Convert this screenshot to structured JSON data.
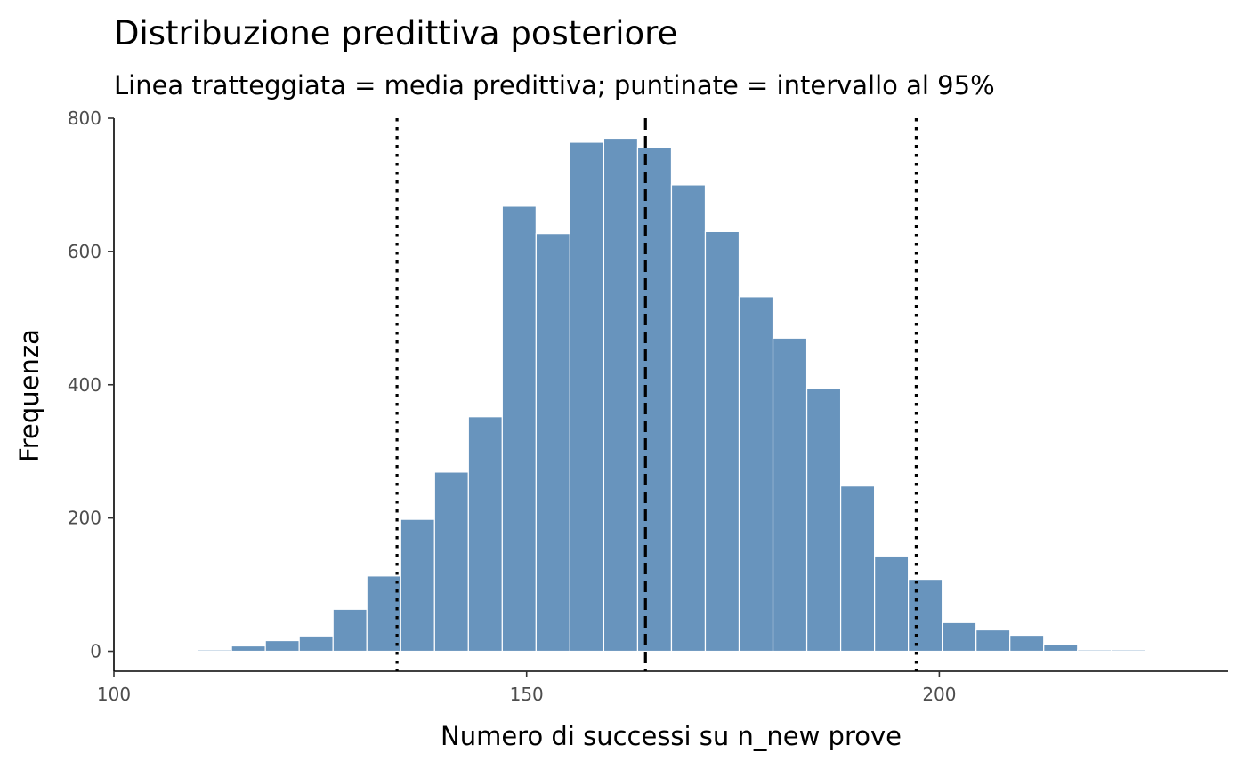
{
  "chart_data": {
    "type": "bar",
    "title": "Distribuzione predittiva posteriore",
    "subtitle": "Linea tratteggiata = media predittiva; puntinate = intervallo al 95%",
    "xlabel": "Numero di successi su n_new prove",
    "ylabel": "Frequenza",
    "xlim": [
      100,
      235
    ],
    "ylim": [
      -30,
      800
    ],
    "x_ticks": [
      100,
      150,
      200
    ],
    "y_ticks": [
      0,
      200,
      400,
      600,
      800
    ],
    "bin_width": 4.1,
    "bins": [
      {
        "x": 108.1,
        "count": 1
      },
      {
        "x": 112.2,
        "count": 2
      },
      {
        "x": 116.3,
        "count": 8
      },
      {
        "x": 120.4,
        "count": 16
      },
      {
        "x": 124.5,
        "count": 23
      },
      {
        "x": 128.6,
        "count": 63
      },
      {
        "x": 132.7,
        "count": 113
      },
      {
        "x": 136.8,
        "count": 198
      },
      {
        "x": 140.9,
        "count": 269
      },
      {
        "x": 145.0,
        "count": 352
      },
      {
        "x": 149.1,
        "count": 668
      },
      {
        "x": 153.2,
        "count": 627
      },
      {
        "x": 157.3,
        "count": 764
      },
      {
        "x": 161.4,
        "count": 770
      },
      {
        "x": 165.5,
        "count": 756
      },
      {
        "x": 169.6,
        "count": 700
      },
      {
        "x": 173.7,
        "count": 630
      },
      {
        "x": 177.8,
        "count": 532
      },
      {
        "x": 181.9,
        "count": 470
      },
      {
        "x": 186.0,
        "count": 395
      },
      {
        "x": 190.1,
        "count": 248
      },
      {
        "x": 194.2,
        "count": 143
      },
      {
        "x": 198.3,
        "count": 108
      },
      {
        "x": 202.4,
        "count": 43
      },
      {
        "x": 206.5,
        "count": 32
      },
      {
        "x": 210.6,
        "count": 24
      },
      {
        "x": 214.7,
        "count": 10
      },
      {
        "x": 218.8,
        "count": 2
      },
      {
        "x": 222.9,
        "count": 2
      }
    ],
    "mean": 164.4,
    "ci_95": [
      134.3,
      197.2
    ],
    "colors": {
      "bar_fill": "#6894bd",
      "bar_stroke": "#ffffff",
      "mean_line": "#000000",
      "ci_lines": "#000000"
    },
    "grid": false,
    "legend": "none"
  }
}
